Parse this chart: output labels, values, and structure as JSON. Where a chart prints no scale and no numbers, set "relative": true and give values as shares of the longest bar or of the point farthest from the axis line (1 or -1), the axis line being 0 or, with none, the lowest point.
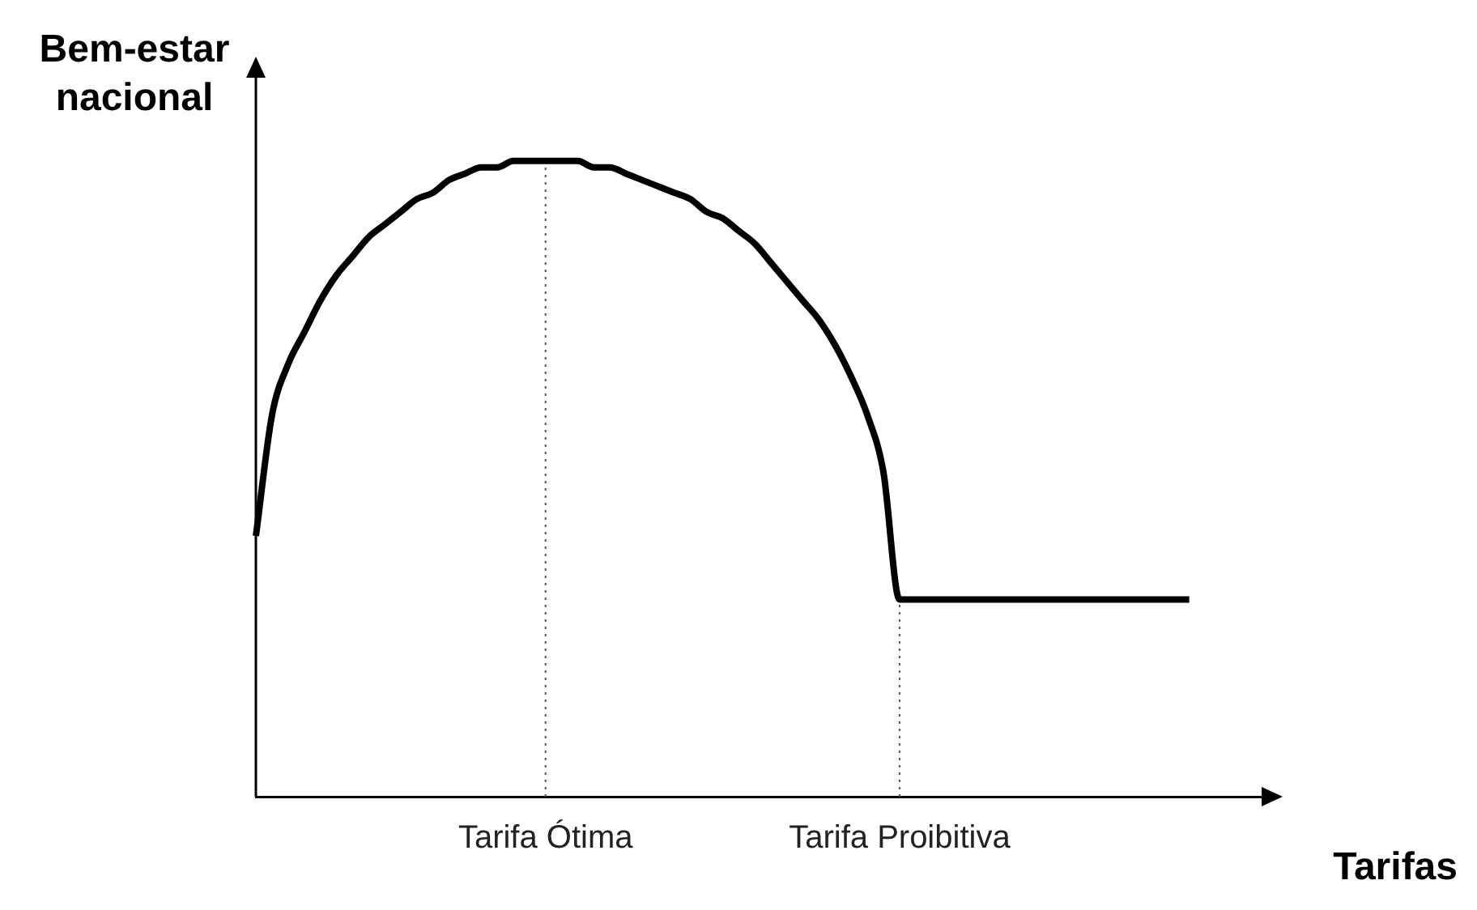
{
  "chart_data": {
    "type": "line",
    "relative": true,
    "xlabel": "Tarifas",
    "ylabel": "Bem-estar nacional",
    "categories": [
      null,
      null,
      null,
      null,
      null,
      null,
      null,
      null,
      null,
      null,
      null,
      null,
      null,
      null,
      null,
      null,
      null,
      null,
      "Tarifa Ótima",
      null,
      null,
      null,
      null,
      null,
      null,
      null,
      null,
      null,
      null,
      null,
      null,
      null,
      null,
      null,
      null,
      null,
      null,
      null,
      null,
      null,
      "Tarifa Proibitiva",
      null,
      null,
      null,
      null,
      null,
      null,
      null,
      null,
      null,
      null,
      null,
      null,
      null,
      null,
      null,
      null,
      null,
      null,
      null,
      null,
      null,
      null,
      null
    ],
    "series": [
      {
        "color": "#000000",
        "values": [
          0.41,
          0.6,
          0.68,
          0.73,
          0.78,
          0.82,
          0.85,
          0.88,
          0.9,
          0.92,
          0.94,
          0.95,
          0.97,
          0.98,
          0.99,
          0.99,
          1,
          1,
          1,
          1,
          1,
          0.99,
          0.99,
          0.98,
          0.97,
          0.96,
          0.95,
          0.94,
          0.92,
          0.91,
          0.89,
          0.87,
          0.84,
          0.81,
          0.78,
          0.75,
          0.71,
          0.66,
          0.6,
          0.51,
          0.31,
          0.31,
          0.31,
          0.31,
          0.31,
          0.31,
          0.31,
          0.31,
          0.31,
          0.31,
          0.31,
          0.31,
          0.31,
          0.31,
          0.31,
          0.31,
          0.31,
          0.31,
          0.31,
          null,
          null,
          null,
          null,
          null
        ]
      }
    ],
    "ref_lines": [
      {
        "axis": "x",
        "value": "Tarifa Ótima",
        "line_style": "dotted",
        "color": "#555555"
      },
      {
        "axis": "x",
        "value": "Tarifa Proibitiva",
        "line_style": "dotted",
        "color": "#555555"
      }
    ],
    "grid": false,
    "legend": false,
    "marker": "none",
    "line_style": "solid"
  }
}
